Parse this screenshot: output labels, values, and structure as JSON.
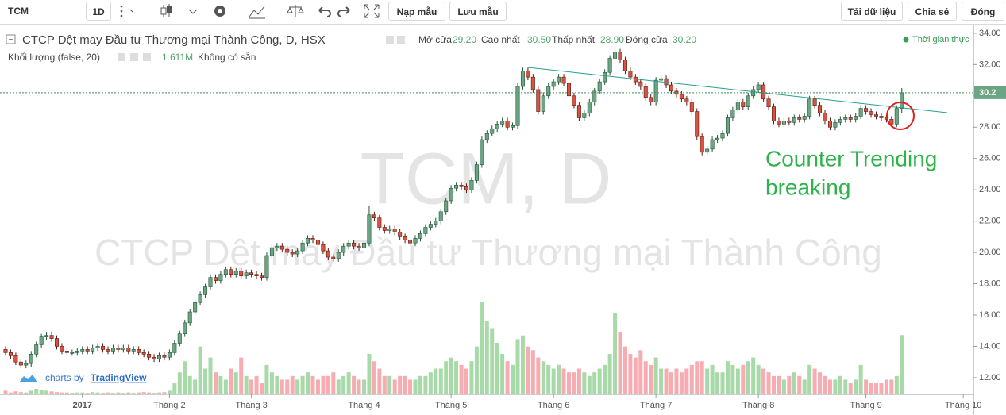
{
  "toolbar": {
    "symbol": "TCM",
    "interval": "1D",
    "buttons_left": [
      "Nạp mẫu",
      "Lưu mẫu"
    ],
    "buttons_right": [
      "Tải dữ liệu",
      "Chia sẻ",
      "Đóng"
    ]
  },
  "chart_data": {
    "type": "candlestick",
    "title": "CTCP Dệt may Đầu tư Thương mại Thành Công, D, HSX",
    "watermark": [
      "TCM, D",
      "CTCP Dệt may Đầu tư Thương mại Thành Công"
    ],
    "legend_values": [
      {
        "name": "Mở cửa",
        "value": 29.2,
        "label": "29.20"
      },
      {
        "name": "Cao nhất",
        "value": 30.5,
        "label": "30.50"
      },
      {
        "name": "Thấp nhất",
        "value": 28.9,
        "label": "28.90"
      },
      {
        "name": "Đóng cửa",
        "value": 30.2,
        "label": "30.20"
      }
    ],
    "volume_legend": {
      "name": "Khối lượng (false, 20)",
      "value": 1.611,
      "label": "1.611M",
      "note": "Không có sẵn"
    },
    "realtime": "Thời gian thực",
    "annotation": [
      "Counter Trending",
      "breaking"
    ],
    "credit": [
      "charts by",
      "TradingView"
    ],
    "up_color": "#6ba583",
    "up_border": "#225437",
    "down_color": "#d75442",
    "down_border": "#5b1a13",
    "volume_up_color": "#9fd59f",
    "volume_down_color": "#f5a3a8",
    "ylim": [
      10.93,
      34.35
    ],
    "yticks": [
      {
        "value": 12,
        "label": "12.00"
      },
      {
        "value": 14,
        "label": "14.00"
      },
      {
        "value": 16,
        "label": "16.00"
      },
      {
        "value": 18,
        "label": "18.00"
      },
      {
        "value": 20,
        "label": "20.00"
      },
      {
        "value": 22,
        "label": "22.00"
      },
      {
        "value": 24,
        "label": "24.00"
      },
      {
        "value": 26,
        "label": "26.00"
      },
      {
        "value": 28,
        "label": "28.00"
      },
      {
        "value": 30,
        "label": "30.00"
      },
      {
        "value": 32,
        "label": "32.00"
      },
      {
        "value": 34,
        "label": "34.00"
      }
    ],
    "grid": false,
    "categories": [
      null,
      null,
      null,
      null,
      null,
      null,
      null,
      null,
      null,
      null,
      null,
      null,
      null,
      null,
      null,
      "2017",
      null,
      null,
      null,
      null,
      null,
      null,
      null,
      null,
      null,
      null,
      null,
      null,
      null,
      null,
      null,
      null,
      "Tháng 2",
      null,
      null,
      null,
      null,
      null,
      null,
      null,
      null,
      null,
      null,
      null,
      null,
      null,
      null,
      null,
      "Tháng 3",
      null,
      null,
      null,
      null,
      null,
      null,
      null,
      null,
      null,
      null,
      null,
      null,
      null,
      null,
      null,
      null,
      null,
      null,
      null,
      null,
      null,
      "Tháng 4",
      null,
      null,
      null,
      null,
      null,
      null,
      null,
      null,
      null,
      null,
      null,
      null,
      null,
      null,
      null,
      null,
      "Tháng 5",
      null,
      null,
      null,
      null,
      null,
      null,
      null,
      null,
      null,
      null,
      null,
      null,
      null,
      null,
      null,
      null,
      null,
      null,
      null,
      "Tháng 6",
      null,
      null,
      null,
      null,
      null,
      null,
      null,
      null,
      null,
      null,
      null,
      null,
      null,
      null,
      null,
      null,
      null,
      null,
      null,
      "Tháng 7",
      null,
      null,
      null,
      null,
      null,
      null,
      null,
      null,
      null,
      null,
      null,
      null,
      null,
      null,
      null,
      null,
      null,
      null,
      null,
      "Tháng 8",
      null,
      null,
      null,
      null,
      null,
      null,
      null,
      null,
      null,
      null,
      null,
      null,
      null,
      null,
      null,
      null,
      null,
      null,
      null,
      null,
      "Tháng 9",
      null,
      null,
      null,
      null,
      null,
      null,
      null,
      null,
      null,
      null,
      null,
      null,
      null,
      null,
      null,
      null,
      null,
      null,
      "Tháng 10"
    ],
    "open": [
      13.8,
      13.6,
      13.4,
      13.0,
      12.8,
      12.9,
      13.5,
      14.1,
      14.6,
      14.7,
      14.5,
      14.0,
      13.7,
      13.6,
      13.6,
      13.7,
      13.8,
      13.7,
      13.9,
      14.0,
      13.8,
      13.7,
      13.9,
      13.8,
      13.9,
      13.7,
      13.8,
      13.6,
      13.5,
      13.3,
      13.2,
      13.4,
      13.3,
      13.6,
      14.2,
      14.8,
      15.5,
      16.2,
      16.8,
      17.3,
      17.8,
      18.4,
      18.2,
      18.6,
      18.9,
      18.6,
      18.8,
      18.5,
      18.7,
      18.6,
      18.5,
      18.4,
      19.8,
      20.3,
      20.4,
      20.2,
      20.0,
      19.9,
      20.1,
      20.6,
      20.9,
      20.8,
      20.5,
      20.1,
      19.7,
      19.6,
      20.0,
      20.4,
      20.6,
      20.4,
      20.3,
      20.6,
      22.4,
      22.2,
      21.6,
      21.4,
      21.5,
      21.3,
      21.0,
      20.8,
      20.6,
      20.9,
      21.2,
      21.6,
      21.8,
      22.0,
      22.6,
      23.3,
      24.1,
      24.3,
      24.2,
      24.0,
      24.6,
      25.6,
      27.2,
      27.6,
      27.9,
      28.2,
      28.4,
      28.0,
      28.1,
      30.6,
      31.6,
      31.2,
      30.4,
      29.0,
      30.0,
      30.6,
      30.9,
      31.2,
      30.8,
      30.0,
      29.4,
      28.6,
      28.9,
      29.6,
      30.3,
      30.9,
      31.5,
      32.4,
      32.8,
      32.3,
      31.6,
      31.2,
      30.9,
      30.6,
      29.9,
      29.6,
      31.0,
      31.1,
      30.7,
      30.3,
      30.1,
      29.8,
      29.6,
      29.0,
      27.4,
      26.4,
      26.6,
      27.2,
      27.3,
      27.6,
      28.6,
      29.1,
      29.6,
      29.3,
      30.0,
      30.4,
      30.7,
      29.8,
      29.3,
      28.4,
      28.2,
      28.4,
      28.3,
      28.6,
      28.5,
      28.7,
      29.8,
      29.4,
      28.9,
      28.4,
      28.0,
      28.3,
      28.5,
      28.6,
      28.5,
      28.7,
      29.2,
      29.0,
      28.8,
      28.7,
      28.6,
      28.5,
      28.2,
      29.2,
      null,
      null,
      null,
      null,
      null,
      null,
      null,
      null,
      null,
      null,
      null,
      null
    ],
    "high": [
      14.0,
      13.8,
      13.6,
      13.2,
      13.1,
      13.7,
      14.3,
      14.8,
      14.9,
      14.9,
      14.7,
      14.2,
      13.9,
      13.8,
      13.9,
      14.0,
      14.0,
      14.1,
      14.2,
      14.2,
      14.0,
      14.1,
      14.1,
      14.1,
      14.1,
      14.0,
      14.0,
      13.8,
      13.7,
      13.5,
      13.6,
      13.6,
      13.8,
      14.4,
      15.0,
      15.7,
      16.4,
      17.0,
      17.5,
      18.0,
      18.6,
      18.6,
      18.8,
      19.1,
      19.1,
      19.0,
      19.0,
      18.9,
      18.9,
      18.8,
      18.7,
      20.0,
      20.5,
      20.6,
      20.6,
      20.4,
      20.2,
      20.3,
      20.8,
      21.1,
      21.1,
      21.0,
      20.7,
      20.3,
      19.9,
      20.2,
      20.6,
      20.8,
      20.8,
      20.6,
      20.8,
      23.0,
      22.6,
      22.4,
      21.8,
      21.7,
      21.7,
      21.5,
      21.2,
      21.0,
      21.1,
      21.4,
      21.8,
      22.0,
      22.2,
      22.8,
      23.5,
      24.3,
      24.5,
      24.5,
      24.4,
      24.8,
      25.8,
      27.4,
      27.8,
      28.1,
      28.4,
      28.6,
      28.6,
      28.3,
      30.8,
      31.8,
      31.8,
      31.4,
      30.6,
      30.2,
      30.8,
      31.1,
      31.4,
      31.4,
      31.0,
      30.2,
      29.6,
      29.1,
      29.8,
      30.5,
      31.1,
      31.7,
      32.6,
      33.2,
      33.0,
      32.5,
      31.8,
      31.4,
      31.1,
      30.8,
      30.1,
      31.2,
      31.3,
      31.3,
      30.9,
      30.5,
      30.3,
      30.0,
      29.8,
      29.2,
      27.6,
      26.8,
      27.4,
      27.5,
      27.8,
      28.8,
      29.3,
      29.8,
      29.8,
      30.2,
      30.6,
      30.9,
      30.9,
      30.0,
      29.5,
      28.6,
      28.6,
      28.6,
      28.8,
      28.8,
      28.9,
      30.0,
      30.0,
      29.6,
      29.1,
      28.6,
      28.5,
      28.7,
      28.8,
      28.8,
      28.9,
      29.4,
      29.4,
      29.2,
      29.0,
      28.9,
      28.8,
      28.7,
      29.4,
      30.5,
      null,
      null,
      null,
      null,
      null,
      null,
      null,
      null,
      null,
      null,
      null,
      null
    ],
    "low": [
      13.4,
      13.2,
      12.8,
      12.6,
      12.6,
      12.7,
      13.3,
      13.9,
      14.4,
      14.3,
      13.8,
      13.5,
      13.4,
      13.4,
      13.4,
      13.5,
      13.5,
      13.5,
      13.7,
      13.6,
      13.5,
      13.5,
      13.6,
      13.6,
      13.5,
      13.5,
      13.4,
      13.3,
      13.1,
      13.0,
      13.0,
      13.1,
      13.1,
      13.4,
      14.0,
      14.6,
      15.3,
      16.0,
      16.6,
      17.1,
      17.6,
      18.0,
      18.0,
      18.4,
      18.4,
      18.4,
      18.3,
      18.3,
      18.4,
      18.3,
      18.2,
      18.2,
      19.6,
      20.1,
      20.0,
      19.8,
      19.7,
      19.7,
      19.9,
      20.4,
      20.6,
      20.3,
      19.9,
      19.5,
      19.4,
      19.4,
      19.8,
      20.2,
      20.2,
      20.1,
      20.1,
      20.4,
      22.0,
      21.4,
      21.2,
      21.2,
      21.1,
      20.8,
      20.6,
      20.4,
      20.4,
      20.7,
      21.0,
      21.4,
      21.6,
      21.8,
      22.4,
      23.1,
      23.9,
      24.0,
      23.8,
      23.8,
      24.4,
      25.4,
      27.0,
      27.4,
      27.7,
      28.0,
      27.8,
      27.8,
      27.9,
      30.4,
      31.0,
      30.2,
      28.8,
      28.8,
      29.8,
      30.4,
      30.7,
      30.6,
      29.8,
      29.2,
      28.4,
      28.4,
      28.7,
      29.4,
      30.1,
      30.7,
      31.3,
      32.2,
      32.1,
      31.4,
      31.0,
      30.7,
      30.4,
      29.7,
      29.4,
      29.4,
      30.8,
      30.5,
      30.1,
      29.9,
      29.6,
      29.4,
      28.8,
      27.2,
      26.2,
      26.2,
      26.4,
      27.0,
      27.1,
      27.4,
      28.4,
      28.9,
      29.1,
      29.1,
      29.8,
      30.2,
      29.6,
      29.1,
      28.2,
      28.0,
      28.0,
      28.1,
      28.1,
      28.3,
      28.3,
      28.5,
      29.2,
      28.7,
      28.2,
      27.8,
      27.8,
      28.1,
      28.3,
      28.3,
      28.3,
      28.5,
      28.8,
      28.6,
      28.5,
      28.4,
      28.3,
      28.0,
      28.0,
      28.9,
      null,
      null,
      null,
      null,
      null,
      null,
      null,
      null,
      null,
      null,
      null,
      null
    ],
    "close": [
      13.6,
      13.4,
      13.0,
      12.8,
      12.9,
      13.5,
      14.1,
      14.6,
      14.7,
      14.5,
      14.0,
      13.7,
      13.6,
      13.6,
      13.7,
      13.8,
      13.7,
      13.9,
      14.0,
      13.8,
      13.7,
      13.9,
      13.8,
      13.9,
      13.7,
      13.8,
      13.6,
      13.5,
      13.3,
      13.2,
      13.4,
      13.3,
      13.6,
      14.2,
      14.8,
      15.5,
      16.2,
      16.8,
      17.3,
      17.8,
      18.4,
      18.2,
      18.6,
      18.9,
      18.6,
      18.8,
      18.5,
      18.7,
      18.6,
      18.5,
      18.4,
      19.8,
      20.3,
      20.4,
      20.2,
      20.0,
      19.9,
      20.1,
      20.6,
      20.9,
      20.8,
      20.5,
      20.1,
      19.7,
      19.6,
      20.0,
      20.4,
      20.6,
      20.4,
      20.3,
      20.6,
      22.4,
      22.2,
      21.6,
      21.4,
      21.5,
      21.3,
      21.0,
      20.8,
      20.6,
      20.9,
      21.2,
      21.6,
      21.8,
      22.0,
      22.6,
      23.3,
      24.1,
      24.3,
      24.2,
      24.0,
      24.6,
      25.6,
      27.2,
      27.6,
      27.9,
      28.2,
      28.4,
      28.0,
      28.1,
      30.6,
      31.6,
      31.2,
      30.4,
      29.0,
      30.0,
      30.6,
      30.9,
      31.2,
      30.8,
      30.0,
      29.4,
      28.6,
      28.9,
      29.6,
      30.3,
      30.9,
      31.5,
      32.4,
      32.8,
      32.3,
      31.6,
      31.2,
      30.9,
      30.6,
      29.9,
      29.6,
      31.0,
      31.1,
      30.7,
      30.3,
      30.1,
      29.8,
      29.6,
      29.0,
      27.4,
      26.4,
      26.6,
      27.2,
      27.3,
      27.6,
      28.6,
      29.1,
      29.6,
      29.3,
      30.0,
      30.4,
      30.7,
      29.8,
      29.3,
      28.4,
      28.2,
      28.4,
      28.3,
      28.6,
      28.5,
      28.7,
      29.8,
      29.4,
      28.9,
      28.4,
      28.0,
      28.3,
      28.5,
      28.6,
      28.5,
      28.7,
      29.2,
      29.0,
      28.8,
      28.7,
      28.6,
      28.5,
      28.2,
      29.2,
      30.2,
      null,
      null,
      null,
      null,
      null,
      null,
      null,
      null,
      null,
      null,
      null,
      null
    ],
    "volume": [
      0.1,
      0.05,
      0.08,
      0.06,
      0.05,
      0.1,
      0.15,
      0.12,
      0.1,
      0.08,
      0.06,
      0.05,
      0.05,
      0.04,
      0.05,
      0.05,
      0.04,
      0.06,
      0.05,
      0.04,
      0.05,
      0.04,
      0.05,
      0.04,
      0.05,
      0.04,
      0.05,
      0.06,
      0.05,
      0.04,
      0.05,
      0.06,
      0.1,
      0.3,
      0.6,
      0.9,
      0.5,
      0.4,
      1.3,
      0.7,
      1.0,
      0.6,
      0.5,
      0.4,
      0.7,
      0.6,
      1.0,
      0.5,
      0.4,
      0.5,
      0.3,
      0.8,
      0.6,
      0.5,
      0.4,
      0.4,
      0.5,
      0.4,
      0.5,
      0.6,
      0.5,
      0.4,
      0.5,
      0.5,
      0.6,
      0.4,
      0.5,
      0.6,
      0.5,
      0.4,
      0.4,
      1.1,
      0.9,
      0.7,
      0.5,
      0.5,
      0.4,
      0.5,
      0.5,
      0.4,
      0.4,
      0.5,
      0.5,
      0.6,
      0.7,
      0.7,
      0.9,
      1.0,
      0.9,
      0.8,
      0.7,
      0.9,
      1.3,
      2.5,
      2.0,
      1.8,
      1.4,
      1.1,
      0.9,
      0.8,
      1.5,
      1.6,
      1.3,
      1.2,
      1.0,
      0.9,
      0.8,
      0.7,
      0.8,
      0.7,
      0.6,
      0.6,
      0.7,
      0.6,
      0.5,
      0.6,
      0.7,
      0.8,
      1.1,
      2.2,
      1.7,
      1.3,
      1.1,
      1.0,
      1.2,
      0.9,
      0.8,
      1.0,
      0.7,
      0.7,
      0.6,
      0.7,
      0.6,
      0.7,
      0.8,
      0.9,
      0.9,
      0.7,
      0.8,
      0.6,
      0.6,
      0.9,
      0.8,
      0.7,
      0.8,
      0.9,
      1.0,
      0.8,
      0.7,
      0.6,
      0.5,
      0.5,
      0.4,
      0.5,
      0.6,
      0.5,
      0.4,
      0.8,
      0.7,
      0.6,
      0.5,
      0.4,
      0.4,
      0.5,
      0.4,
      0.3,
      0.4,
      0.8,
      0.4,
      0.3,
      0.3,
      0.3,
      0.4,
      0.4,
      0.5,
      1.611,
      null,
      null,
      null,
      null,
      null,
      null,
      null,
      null,
      null,
      null,
      null,
      null
    ]
  }
}
